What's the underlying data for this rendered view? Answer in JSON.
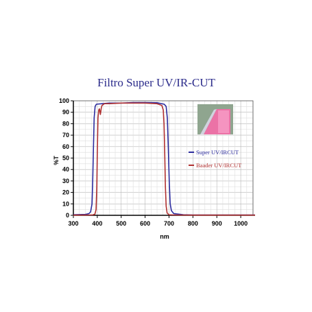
{
  "chart_data": {
    "type": "line",
    "title": "Filtro Super UV/IR-CUT",
    "xlabel": "nm",
    "ylabel": "%T",
    "xlim": [
      300,
      1060
    ],
    "ylim": [
      0,
      100
    ],
    "x_ticks": [
      300,
      400,
      500,
      600,
      700,
      800,
      900,
      1000
    ],
    "y_ticks": [
      0,
      10,
      20,
      30,
      40,
      50,
      60,
      70,
      80,
      90,
      100
    ],
    "grid": true,
    "legend_position": "right",
    "series": [
      {
        "name": "Super UV/IRCUT",
        "color": "#2b2b9e",
        "points": [
          [
            300,
            0.5
          ],
          [
            350,
            0.8
          ],
          [
            365,
            1.5
          ],
          [
            372,
            3
          ],
          [
            378,
            10
          ],
          [
            381,
            30
          ],
          [
            384,
            60
          ],
          [
            387,
            85
          ],
          [
            391,
            95
          ],
          [
            396,
            97
          ],
          [
            420,
            97.5
          ],
          [
            450,
            98
          ],
          [
            500,
            98
          ],
          [
            550,
            98.5
          ],
          [
            600,
            98.5
          ],
          [
            650,
            98.3
          ],
          [
            680,
            97
          ],
          [
            688,
            95
          ],
          [
            693,
            85
          ],
          [
            697,
            60
          ],
          [
            701,
            30
          ],
          [
            705,
            10
          ],
          [
            710,
            4
          ],
          [
            720,
            1.5
          ],
          [
            740,
            1
          ],
          [
            760,
            0.5
          ],
          [
            800,
            0.3
          ],
          [
            900,
            0.3
          ],
          [
            1000,
            0.3
          ],
          [
            1060,
            0.3
          ]
        ]
      },
      {
        "name": "Baader UV/IRCUT",
        "color": "#b03030",
        "points": [
          [
            300,
            0.2
          ],
          [
            380,
            0.3
          ],
          [
            390,
            1
          ],
          [
            395,
            5
          ],
          [
            398,
            25
          ],
          [
            400,
            55
          ],
          [
            403,
            85
          ],
          [
            406,
            92
          ],
          [
            409,
            93
          ],
          [
            413,
            88
          ],
          [
            417,
            94
          ],
          [
            420,
            96
          ],
          [
            430,
            97.5
          ],
          [
            450,
            97.5
          ],
          [
            500,
            98
          ],
          [
            550,
            98
          ],
          [
            600,
            98
          ],
          [
            650,
            97.5
          ],
          [
            670,
            96
          ],
          [
            676,
            92
          ],
          [
            679,
            80
          ],
          [
            682,
            55
          ],
          [
            685,
            25
          ],
          [
            688,
            8
          ],
          [
            692,
            2
          ],
          [
            700,
            0.5
          ],
          [
            720,
            0.3
          ],
          [
            800,
            0.2
          ],
          [
            900,
            0.2
          ],
          [
            1000,
            0.2
          ],
          [
            1060,
            0.2
          ]
        ]
      }
    ]
  },
  "inset": {
    "icon": "filter-glass-photo-icon",
    "background": "#8fa58f",
    "glass_color": "#f06fa8"
  }
}
